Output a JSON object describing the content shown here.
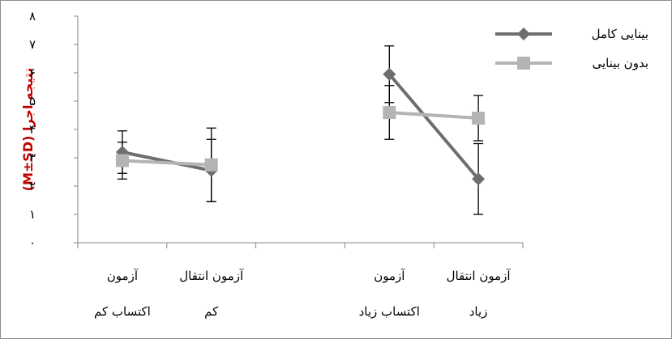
{
  "chart_data": {
    "type": "line",
    "title": "",
    "ylabel": "(M±SD) نتیجه اجرا",
    "ylim": [
      0,
      8
    ],
    "yticks": [
      "۰",
      "۱",
      "۲",
      "۳",
      "۴",
      "۵",
      "۶",
      "۷",
      "۸"
    ],
    "grid": false,
    "legend_position": "top-right",
    "groups": [
      {
        "categories": [
          {
            "line1": "آزمون",
            "line2": "اکتساب کم"
          },
          {
            "line1": "آزمون انتقال",
            "line2": "کم"
          }
        ]
      },
      {
        "categories": [
          {
            "line1": "آزمون",
            "line2": "اکتساب زیاد"
          },
          {
            "line1": "آزمون انتقال",
            "line2": "زیاد"
          }
        ]
      }
    ],
    "series": [
      {
        "name": "بینایی کامل",
        "color": "#6e6e6e",
        "marker": "diamond",
        "values": [
          [
            3.2,
            2.55
          ],
          [
            5.95,
            2.25
          ]
        ],
        "sd": [
          [
            0.75,
            1.1
          ],
          [
            1.0,
            1.25
          ]
        ]
      },
      {
        "name": "بدون بینایی",
        "color": "#b4b4b4",
        "marker": "square",
        "values": [
          [
            2.9,
            2.75
          ],
          [
            4.6,
            4.4
          ]
        ],
        "sd": [
          [
            0.65,
            1.3
          ],
          [
            0.95,
            0.8
          ]
        ]
      }
    ]
  }
}
